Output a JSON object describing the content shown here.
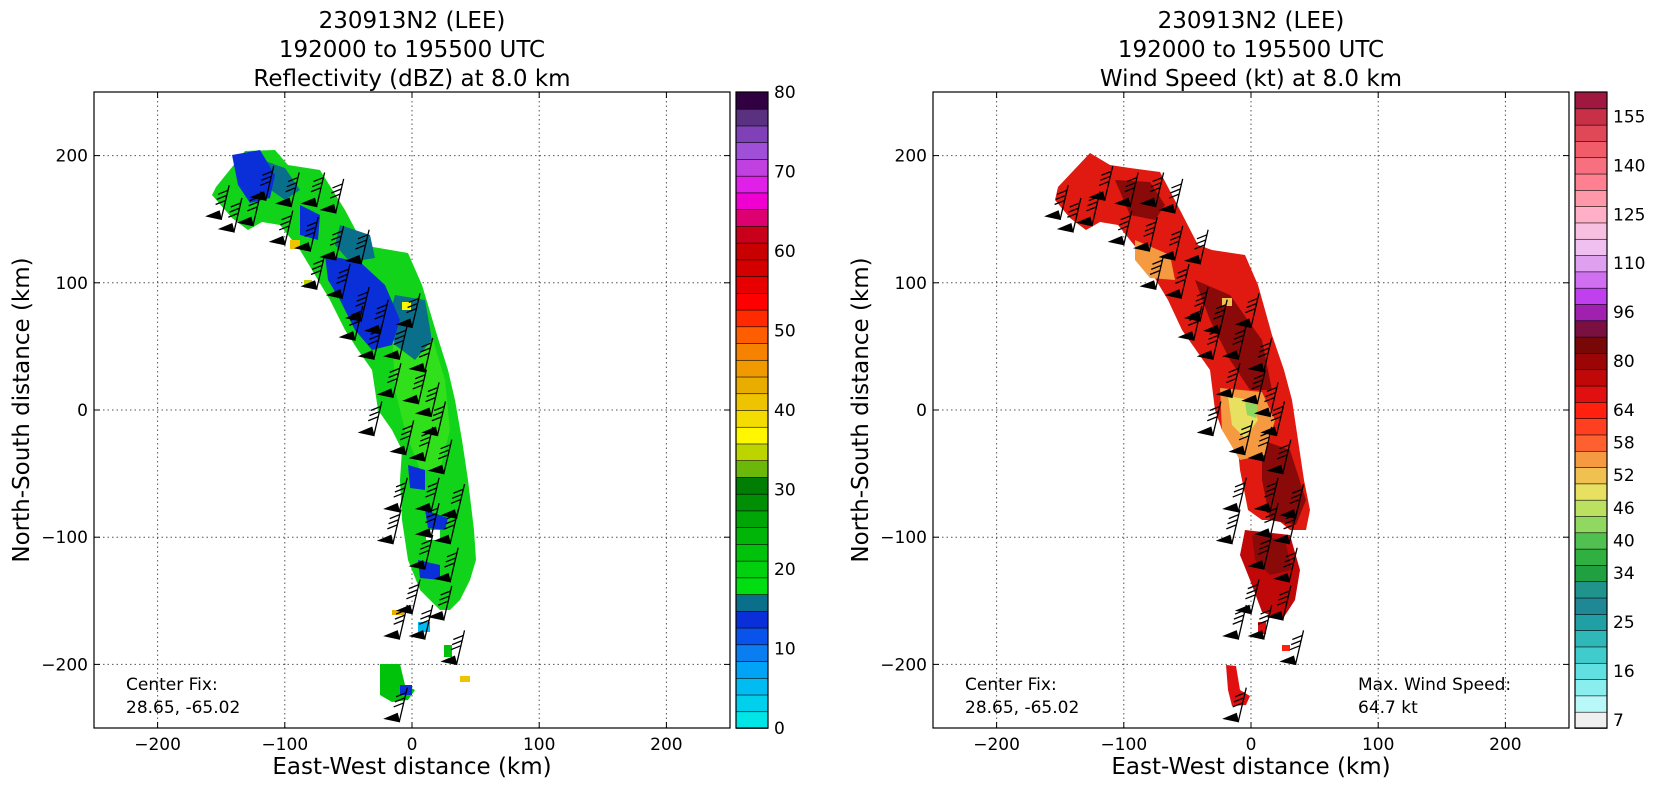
{
  "chart_data": [
    {
      "type": "heatmap",
      "title_lines": [
        "230913N2 (LEE)",
        "192000 to 195500 UTC",
        "Reflectivity (dBZ) at 8.0 km"
      ],
      "xlabel": "East-West distance (km)",
      "ylabel": "North-South distance (km)",
      "xlim": [
        -250,
        250
      ],
      "ylim": [
        -250,
        250
      ],
      "xticks": [
        -200,
        -100,
        0,
        100,
        200
      ],
      "yticks": [
        -200,
        -100,
        0,
        100,
        200
      ],
      "grid": true,
      "colorbar": {
        "min": 0,
        "max": 80,
        "step": 2.5,
        "tick_values": [
          0,
          10,
          20,
          30,
          40,
          50,
          60,
          70,
          80
        ],
        "tick_labels": [
          "0",
          "10",
          "20",
          "30",
          "40",
          "50",
          "60",
          "70",
          "80"
        ],
        "colors": [
          "#00e5e5",
          "#00d0ec",
          "#00bcf2",
          "#00a3f5",
          "#0a7ef0",
          "#0a52ec",
          "#0a2fd8",
          "#0a6f8a",
          "#00dd11",
          "#00d00e",
          "#00c20b",
          "#00b408",
          "#00a605",
          "#008f04",
          "#007d03",
          "#6bb80a",
          "#bcd500",
          "#fff700",
          "#f5dc00",
          "#eec300",
          "#e9ad00",
          "#f09a00",
          "#f58200",
          "#ff5e00",
          "#ff2a00",
          "#ff0000",
          "#e80000",
          "#d40000",
          "#c80000",
          "#c8001a",
          "#dc0070",
          "#f000d0",
          "#e020e8",
          "#c040e0",
          "#a050d8",
          "#8040b8",
          "#5a3080",
          "#300040"
        ]
      },
      "annotation": "Center Fix:\n28.65, -65.02",
      "center_fix": "28.65, -65.02"
    },
    {
      "type": "heatmap",
      "title_lines": [
        "230913N2 (LEE)",
        "192000 to 195500 UTC",
        "Wind Speed (kt) at 8.0 km"
      ],
      "xlabel": "East-West distance (km)",
      "ylabel": "North-South distance (km)",
      "xlim": [
        -250,
        250
      ],
      "ylim": [
        -250,
        250
      ],
      "xticks": [
        -200,
        -100,
        0,
        100,
        200
      ],
      "yticks": [
        -200,
        -100,
        0,
        100,
        200
      ],
      "grid": true,
      "colorbar": {
        "tick_labels": [
          "7",
          "16",
          "25",
          "34",
          "40",
          "46",
          "52",
          "58",
          "64",
          "80",
          "96",
          "110",
          "125",
          "140",
          "155"
        ],
        "tick_bin_index": [
          0,
          3,
          6,
          9,
          11,
          13,
          15,
          17,
          19,
          22,
          25,
          28,
          31,
          34,
          37
        ],
        "bins": 39,
        "colors": [
          "#efefef",
          "#b8f8f8",
          "#8aeeee",
          "#60e0e0",
          "#40cccc",
          "#30b8b8",
          "#209fa5",
          "#208895",
          "#20948c",
          "#20a040",
          "#30b040",
          "#50c050",
          "#90d860",
          "#bce060",
          "#e8e060",
          "#f0c050",
          "#f59a40",
          "#ff6030",
          "#ff4020",
          "#ff2010",
          "#e01010",
          "#c00808",
          "#9c0505",
          "#780808",
          "#7a1040",
          "#a020b0",
          "#c040f0",
          "#d070f0",
          "#e0a0f0",
          "#f0c0f0",
          "#f8c0e0",
          "#ffb0c8",
          "#ff98a8",
          "#ff8090",
          "#f87080",
          "#f05c68",
          "#e04858",
          "#c83048",
          "#a01840"
        ]
      },
      "annotation": "Center Fix:\n28.65, -65.02",
      "center_fix": "28.65, -65.02",
      "max_wind_label": "Max. Wind Speed:",
      "max_wind_value": "64.7 kt"
    }
  ]
}
